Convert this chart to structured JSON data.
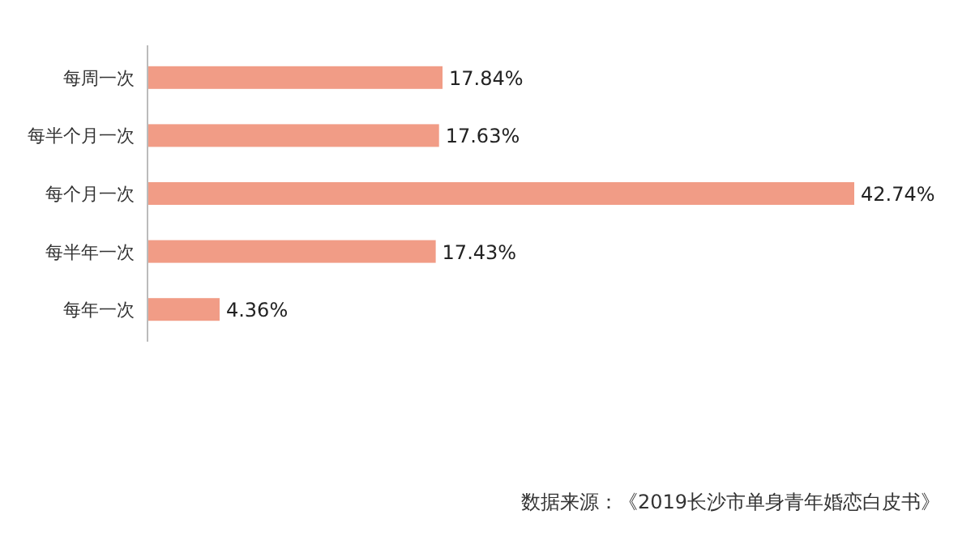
{
  "chart_data": {
    "type": "bar",
    "orientation": "horizontal",
    "categories": [
      "每周一次",
      "每半个月一次",
      "每个月一次",
      "每半年一次",
      "每年一次"
    ],
    "values": [
      17.84,
      17.63,
      42.74,
      17.43,
      4.36
    ],
    "value_labels": [
      "17.84%",
      "17.63%",
      "42.74%",
      "17.43%",
      "4.36%"
    ],
    "color": "#f19c86",
    "annotations": [
      "数据来源：《2019长沙市单身青年婚恋白皮书》"
    ]
  }
}
